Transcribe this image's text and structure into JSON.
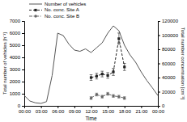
{
  "chart_data": {
    "type": "line",
    "x_label": "Time",
    "y_label": "Total number of vehicles [h⁻¹]",
    "y2_label": "Total number concentration [cm⁻³]",
    "xlim": [
      0,
      24
    ],
    "xticks": [
      {
        "value": 0,
        "label": "00:00"
      },
      {
        "value": 3,
        "label": "03:00"
      },
      {
        "value": 6,
        "label": "06:00"
      },
      {
        "value": 9,
        "label": "09:00"
      },
      {
        "value": 12,
        "label": "12:00"
      },
      {
        "value": 15,
        "label": "15:00"
      },
      {
        "value": 18,
        "label": "18:00"
      },
      {
        "value": 21,
        "label": "21:00"
      },
      {
        "value": 24,
        "label": "00:00"
      }
    ],
    "ylim": [
      0,
      7000
    ],
    "yticks": [
      0,
      1000,
      2000,
      3000,
      4000,
      5000,
      6000,
      7000
    ],
    "y2lim": [
      0,
      120000
    ],
    "y2ticks": [
      0,
      20000,
      40000,
      60000,
      80000,
      100000,
      120000
    ],
    "grid": false,
    "legend": "top",
    "series": [
      {
        "name": "Number of vehicles",
        "color": "#555555",
        "axis": "y",
        "line_style": "solid",
        "marker": "none",
        "x": [
          0,
          1,
          2,
          3,
          4,
          5,
          6,
          7,
          8,
          9,
          10,
          11,
          12,
          13,
          14,
          15,
          16,
          17,
          18,
          19,
          20,
          21,
          22,
          23,
          24
        ],
        "values": [
          850,
          400,
          250,
          200,
          350,
          2500,
          6000,
          5800,
          5100,
          4600,
          4500,
          4700,
          4400,
          4800,
          5200,
          6000,
          6600,
          6200,
          5000,
          4200,
          3600,
          2800,
          2100,
          1500,
          850
        ]
      },
      {
        "name": "No. conc. Site A",
        "color": "#222222",
        "axis": "y2",
        "line_style": "dashed",
        "marker": "square",
        "x": [
          12,
          13,
          14,
          15,
          16,
          17,
          18
        ],
        "values": [
          40000,
          42000,
          45000,
          43000,
          48000,
          95000,
          55000
        ],
        "errors": [
          4000,
          4000,
          4000,
          4000,
          5000,
          8000,
          5000
        ]
      },
      {
        "name": "No. conc. Site B",
        "color": "#666666",
        "axis": "y2",
        "line_style": "dash-dot",
        "marker": "circle",
        "x": [
          12,
          13,
          14,
          15,
          16,
          17,
          18
        ],
        "values": [
          11000,
          16000,
          13000,
          17000,
          14000,
          13000,
          11000
        ],
        "errors": [
          2000,
          2000,
          2000,
          2000,
          2000,
          2000,
          2000
        ]
      }
    ]
  }
}
